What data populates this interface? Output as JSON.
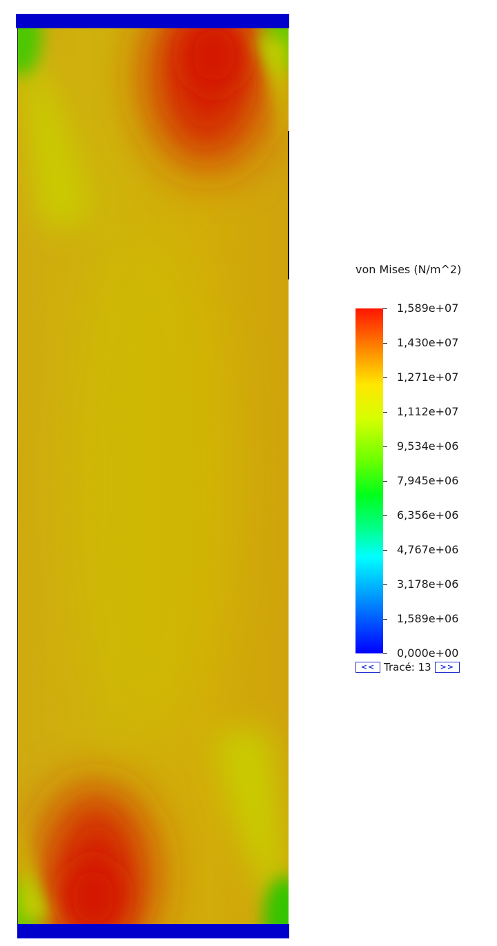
{
  "legend": {
    "title": "von Mises (N/m^2)",
    "ticks": [
      "1,589e+07",
      "1,430e+07",
      "1,271e+07",
      "1,112e+07",
      "9,534e+06",
      "7,945e+06",
      "6,356e+06",
      "4,767e+06",
      "3,178e+06",
      "1,589e+06",
      "0,000e+00"
    ]
  },
  "nav": {
    "prev_label": "<<",
    "plot_label": "Tracé: 13",
    "next_label": ">>"
  },
  "colors": {
    "clamp": "#0000cc",
    "base_stress": "#d6aa00",
    "high_stress": "#d41a00",
    "low_stress": "#c9cc00"
  }
}
